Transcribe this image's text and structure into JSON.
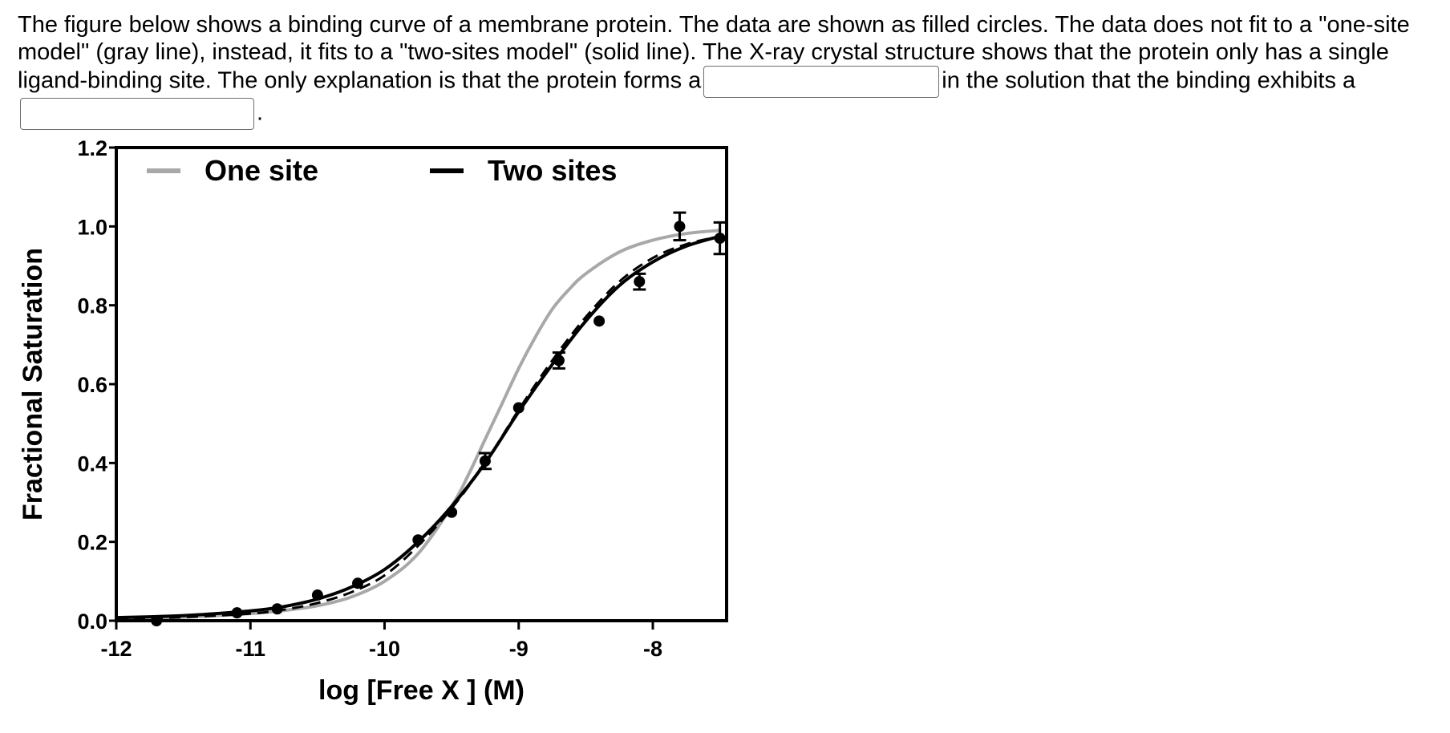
{
  "question": {
    "sentence_1": "The figure below shows a binding curve of a membrane protein.  The data are shown as filled circles.  The data does not fit to a \"one-site model\" (gray line), instead, it fits to a \"two-sites model\" (solid line).  The X-ray crystal structure shows that the protein only has a single ligand-binding site.  The only explanation is that the protein forms a",
    "sentence_2": "in the solution that the binding exhibits a",
    "end_punct": ".",
    "blank_1_value": "",
    "blank_2_value": ""
  },
  "chart_data": {
    "type": "line",
    "xlabel": "log [Free X ] (M)",
    "ylabel": "Fractional Saturation",
    "xlim": [
      -12,
      -7.45
    ],
    "ylim": [
      0,
      1.2
    ],
    "x_ticks": [
      -12,
      -11,
      -10,
      -9,
      -8
    ],
    "y_ticks": [
      0.0,
      0.2,
      0.4,
      0.6,
      0.8,
      1.0,
      1.2
    ],
    "x_tick_labels": [
      "-12",
      "-11",
      "-10",
      "-9",
      "-8"
    ],
    "y_tick_labels": [
      "0.0",
      "0.2",
      "0.4",
      "0.6",
      "0.8",
      "1.0",
      "1.2"
    ],
    "legend": {
      "position": "top",
      "entries": [
        {
          "label": "One site",
          "color": "#a8a8a8"
        },
        {
          "label": "Two sites",
          "color": "#000000"
        }
      ]
    },
    "grid": false,
    "series": [
      {
        "name": "One site",
        "color": "#a8a8a8",
        "x": [
          -12,
          -11.5,
          -11,
          -10.75,
          -10.5,
          -10.25,
          -10,
          -9.75,
          -9.5,
          -9.375,
          -9.25,
          -9.125,
          -9,
          -8.875,
          -8.75,
          -8.625,
          -8.5,
          -8.25,
          -8,
          -7.75,
          -7.5
        ],
        "y": [
          0.005,
          0.009,
          0.018,
          0.026,
          0.038,
          0.06,
          0.1,
          0.17,
          0.29,
          0.37,
          0.46,
          0.55,
          0.64,
          0.72,
          0.79,
          0.84,
          0.88,
          0.935,
          0.965,
          0.982,
          0.99
        ]
      },
      {
        "name": "Two sites",
        "color": "#000000",
        "x": [
          -12,
          -11.5,
          -11,
          -10.75,
          -10.5,
          -10.25,
          -10,
          -9.75,
          -9.5,
          -9.25,
          -9,
          -8.75,
          -8.5,
          -8.25,
          -8,
          -7.75,
          -7.5
        ],
        "y": [
          0.008,
          0.013,
          0.025,
          0.036,
          0.055,
          0.085,
          0.13,
          0.2,
          0.29,
          0.4,
          0.53,
          0.65,
          0.76,
          0.85,
          0.91,
          0.95,
          0.975
        ]
      },
      {
        "name": "",
        "color": "#000000",
        "dashed": true,
        "x": [
          -12,
          -11.5,
          -11,
          -10.75,
          -10.5,
          -10.25,
          -10,
          -9.75,
          -9.5,
          -9.25,
          -9,
          -8.75,
          -8.5,
          -8.25,
          -8,
          -7.75,
          -7.5
        ],
        "y": [
          0.004,
          0.009,
          0.018,
          0.028,
          0.045,
          0.072,
          0.115,
          0.19,
          0.285,
          0.4,
          0.535,
          0.66,
          0.77,
          0.86,
          0.92,
          0.955,
          0.975
        ]
      },
      {
        "name": "",
        "color": "#000000",
        "markers": true,
        "x": [
          -11.7,
          -11.1,
          -10.8,
          -10.5,
          -10.2,
          -9.75,
          -9.5,
          -9.25,
          -9.0,
          -8.7,
          -8.4,
          -8.1,
          -7.8,
          -7.5
        ],
        "y": [
          0.0,
          0.02,
          0.03,
          0.065,
          0.095,
          0.205,
          0.275,
          0.405,
          0.54,
          0.66,
          0.76,
          0.86,
          1.0,
          0.97
        ],
        "error": [
          0,
          0,
          0,
          0,
          0,
          0,
          0,
          0.02,
          0,
          0.02,
          0,
          0.02,
          0.035,
          0.04
        ]
      }
    ]
  }
}
